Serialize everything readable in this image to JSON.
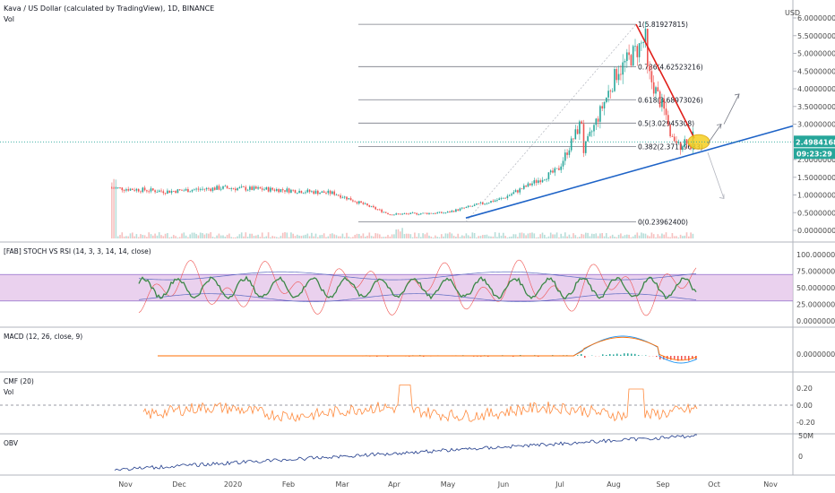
{
  "header": {
    "title": "Kava / US Dollar (calculated by TradingView), 1D, BINANCE",
    "vol_label": "Vol",
    "currency": "USD"
  },
  "price_axis": {
    "ticks": [
      "6.00000000",
      "5.50000000",
      "5.00000000",
      "4.50000000",
      "4.00000000",
      "3.50000000",
      "3.00000000",
      "2.50000000",
      "2.00000000",
      "1.50000000",
      "1.00000000",
      "0.50000000",
      "0.00000000"
    ],
    "tick_values": [
      6.0,
      5.5,
      5.0,
      4.5,
      4.0,
      3.5,
      3.0,
      2.5,
      2.0,
      1.5,
      1.0,
      0.5,
      0.0
    ],
    "current_price": "2.49841686",
    "countdown": "09:23:29",
    "current_value": 2.4984,
    "price_color": "#26a69a",
    "countdown_color": "#26a69a"
  },
  "time_axis": {
    "labels": [
      "Nov",
      "Dec",
      "2020",
      "Feb",
      "Mar",
      "Apr",
      "May",
      "Jun",
      "Jul",
      "Aug",
      "Sep",
      "Oct",
      "Nov"
    ]
  },
  "fib": {
    "levels": [
      {
        "ratio": "1",
        "value": "5.81927815",
        "text": "1(5.81927815)",
        "price": 5.8193
      },
      {
        "ratio": "0.786",
        "value": "4.62523216",
        "text": "0.786(4.62523216)",
        "price": 4.6252
      },
      {
        "ratio": "0.618",
        "value": "3.68973026",
        "text": "0.618(3.68973026)",
        "price": 3.6897
      },
      {
        "ratio": "0.5",
        "value": "3.02945308",
        "text": "0.5(3.02945308)",
        "price": 3.0295
      },
      {
        "ratio": "0.382",
        "value": "2.37119683",
        "text": "0.382(2.37119683)",
        "price": 2.3712
      },
      {
        "ratio": "0",
        "value": "0.23962400",
        "text": "0(0.23962400)",
        "price": 0.2396
      }
    ]
  },
  "panes": {
    "stoch": {
      "title": "[FAB] STOCH VS RSI (14, 3, 3, 14, 14, close)",
      "ticks": [
        "100.00000000",
        "75.00000000",
        "50.00000000",
        "25.00000000",
        "0.00000000"
      ],
      "band": [
        30,
        70
      ],
      "band_color": "#e1bee7"
    },
    "macd": {
      "title": "MACD (12, 26, close, 9)",
      "ticks": [
        "0.00000000"
      ]
    },
    "cmf": {
      "title": "CMF (20)",
      "vol_label": "Vol",
      "ticks": [
        "0.20",
        "0.00",
        "-0.20"
      ]
    },
    "obv": {
      "title": "OBV",
      "ticks": [
        "50M",
        "0"
      ]
    }
  },
  "chart_data": {
    "type": "line",
    "title": "Kava / US Dollar (calculated by TradingView), 1D, BINANCE",
    "x": [
      "Nov",
      "Dec",
      "2020",
      "Feb",
      "Mar",
      "Apr",
      "May",
      "Jun",
      "Jul",
      "Aug",
      "Sep"
    ],
    "series": [
      {
        "name": "Kava / US Dollar",
        "values": [
          1.2,
          1.1,
          1.2,
          1.15,
          1.05,
          0.45,
          0.5,
          0.9,
          1.7,
          5.0,
          2.45
        ]
      }
    ],
    "ylim": [
      0,
      6
    ],
    "ylabel": "USD",
    "colors": {
      "up": "#26a69a",
      "down": "#ef5350",
      "trendline": "#1e63c7",
      "downtrend": "#e0201b",
      "highlight": "#f5d022"
    }
  }
}
